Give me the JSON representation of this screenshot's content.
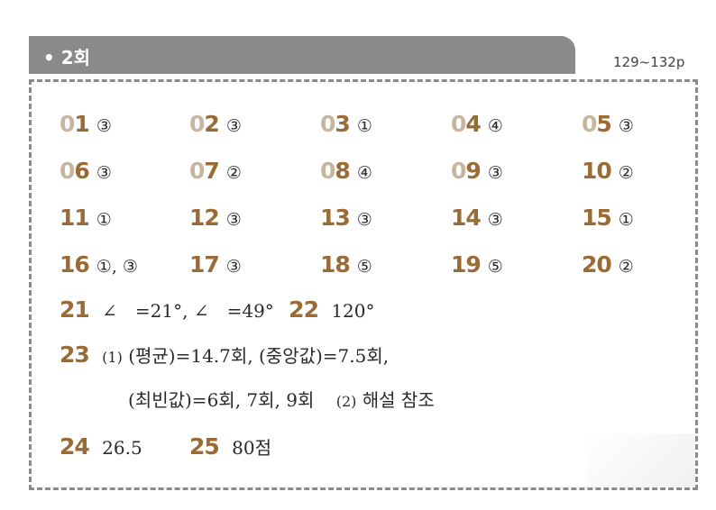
{
  "header": {
    "title": "• 2회",
    "pages": "129~132p"
  },
  "grid": [
    {
      "tens": "0",
      "ones": "1",
      "answer": "③",
      "full": false
    },
    {
      "tens": "0",
      "ones": "2",
      "answer": "③",
      "full": false
    },
    {
      "tens": "0",
      "ones": "3",
      "answer": "①",
      "full": false
    },
    {
      "tens": "0",
      "ones": "4",
      "answer": "④",
      "full": false
    },
    {
      "tens": "0",
      "ones": "5",
      "answer": "③",
      "full": false
    },
    {
      "tens": "0",
      "ones": "6",
      "answer": "③",
      "full": false
    },
    {
      "tens": "0",
      "ones": "7",
      "answer": "②",
      "full": false
    },
    {
      "tens": "0",
      "ones": "8",
      "answer": "④",
      "full": false
    },
    {
      "tens": "0",
      "ones": "9",
      "answer": "③",
      "full": false
    },
    {
      "tens": "1",
      "ones": "0",
      "answer": "②",
      "full": true
    },
    {
      "tens": "1",
      "ones": "1",
      "answer": "①",
      "full": true
    },
    {
      "tens": "1",
      "ones": "2",
      "answer": "③",
      "full": true
    },
    {
      "tens": "1",
      "ones": "3",
      "answer": "③",
      "full": true
    },
    {
      "tens": "1",
      "ones": "4",
      "answer": "③",
      "full": true
    },
    {
      "tens": "1",
      "ones": "5",
      "answer": "①",
      "full": true
    },
    {
      "tens": "1",
      "ones": "6",
      "answer": "①, ③",
      "full": true
    },
    {
      "tens": "1",
      "ones": "7",
      "answer": "③",
      "full": true
    },
    {
      "tens": "1",
      "ones": "8",
      "answer": "⑤",
      "full": true
    },
    {
      "tens": "1",
      "ones": "9",
      "answer": "⑤",
      "full": true
    },
    {
      "tens": "2",
      "ones": "0",
      "answer": "②",
      "full": true
    }
  ],
  "q21": {
    "num": "21",
    "answer": "∠　=21°, ∠　=49°"
  },
  "q22": {
    "num": "22",
    "answer": "120°"
  },
  "q23": {
    "num": "23",
    "part1_label": "(1)",
    "line1": "(평균)=14.7회, (중앙값)=7.5회,",
    "line2": "(최빈값)=6회, 7회, 9회",
    "part2_label": "(2)",
    "part2_text": "해설 참조"
  },
  "q24": {
    "num": "24",
    "answer": "26.5"
  },
  "q25": {
    "num": "25",
    "answer": "80점"
  }
}
